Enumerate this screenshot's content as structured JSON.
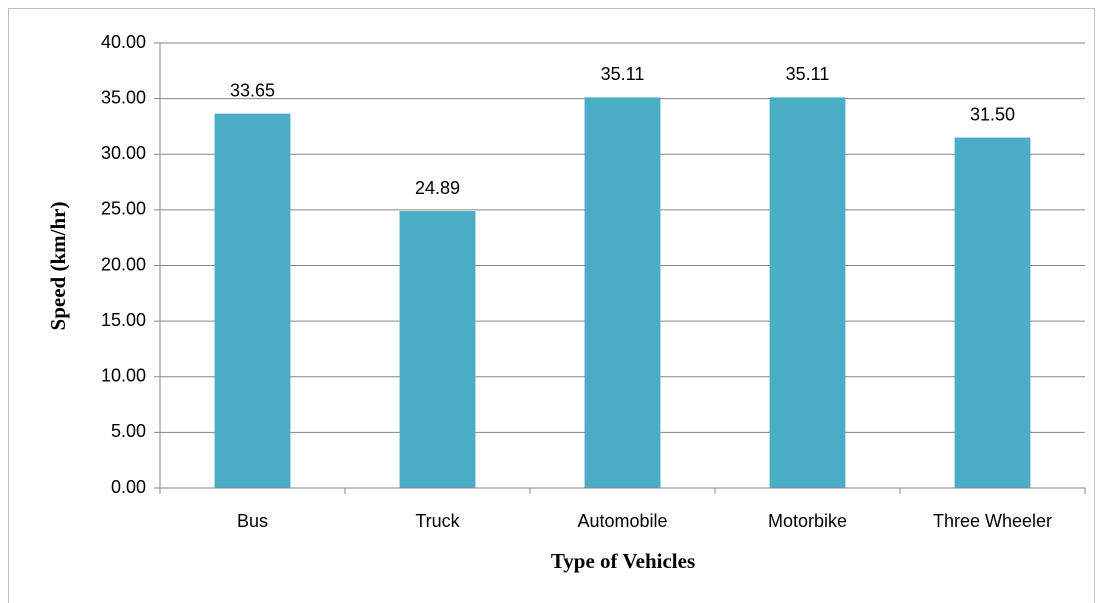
{
  "chart_data": {
    "type": "bar",
    "categories": [
      "Bus",
      "Truck",
      "Automobile",
      "Motorbike",
      "Three Wheeler"
    ],
    "values": [
      33.65,
      24.89,
      35.11,
      35.11,
      31.5
    ],
    "value_labels": [
      "33.65",
      "24.89",
      "35.11",
      "35.11",
      "31.50"
    ],
    "color": "#4bacc6",
    "x_label": "Type of Vehicles",
    "y_label": "Speed (km/hr)",
    "ylim": [
      0,
      40
    ],
    "yticks": [
      {
        "value": 0,
        "label": "0.00"
      },
      {
        "value": 5,
        "label": "5.00"
      },
      {
        "value": 10,
        "label": "10.00"
      },
      {
        "value": 15,
        "label": "15.00"
      },
      {
        "value": 20,
        "label": "20.00"
      },
      {
        "value": 25,
        "label": "25.00"
      },
      {
        "value": 30,
        "label": "30.00"
      },
      {
        "value": 35,
        "label": "35.00"
      },
      {
        "value": 40,
        "label": "40.00"
      }
    ],
    "grid": true
  }
}
